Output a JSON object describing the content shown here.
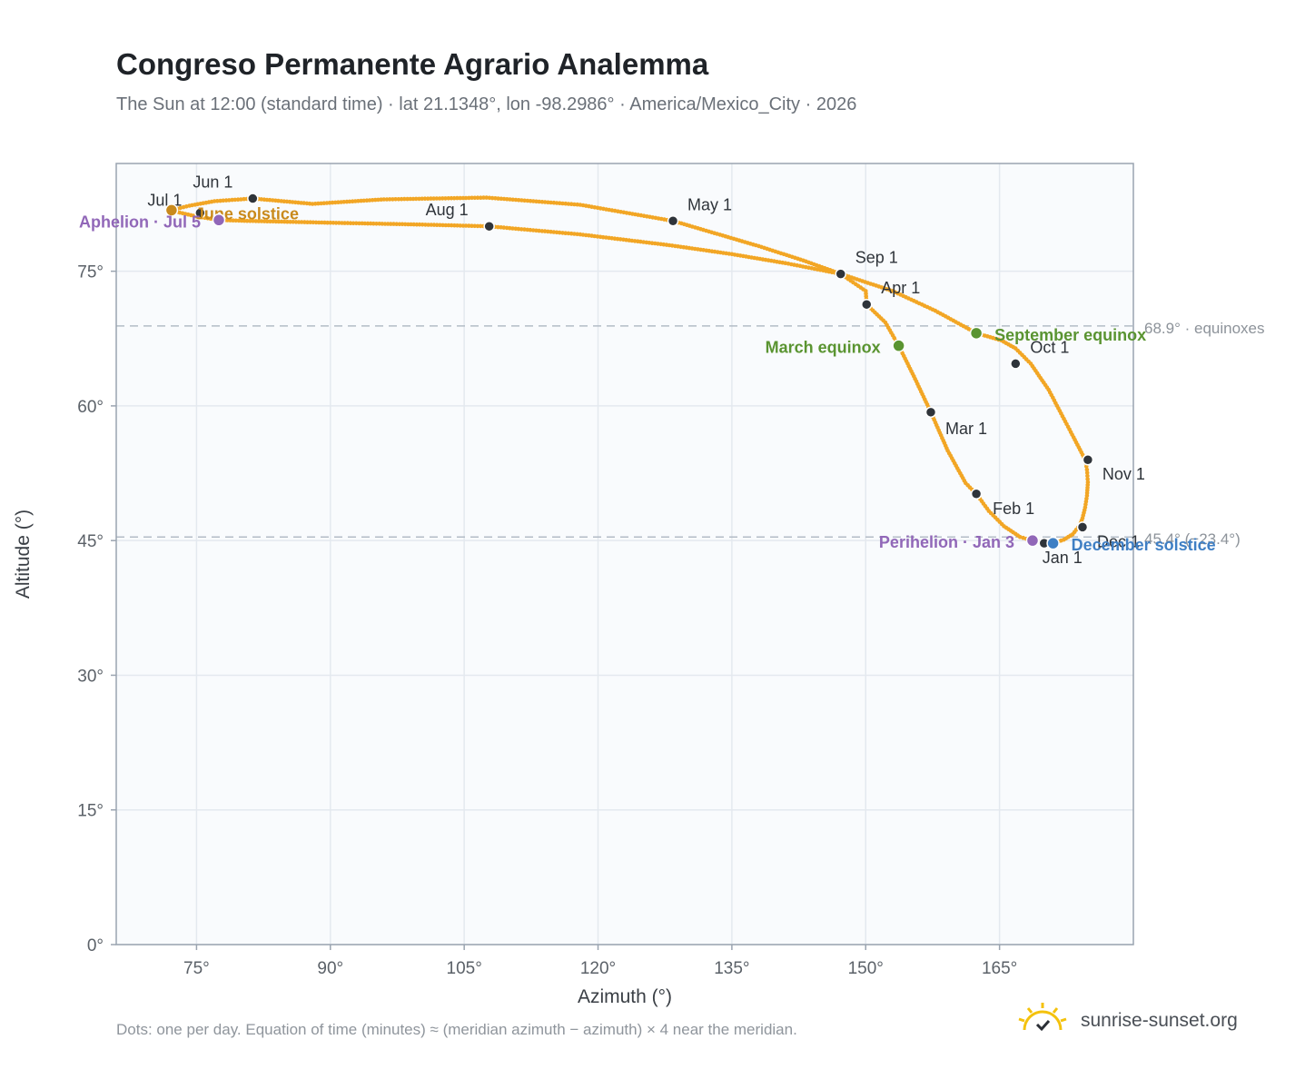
{
  "chart_data": {
    "type": "scatter",
    "title": "Congreso Permanente Agrario Analemma",
    "subtitle": "The Sun at 12:00 (standard time) · lat 21.1348°, lon -98.2986° · America/Mexico_City · 2026",
    "xlabel": "Azimuth (°)",
    "ylabel": "Altitude (°)",
    "xlim": [
      66,
      180
    ],
    "ylim": [
      0,
      87
    ],
    "xticks": [
      75,
      90,
      105,
      120,
      135,
      150,
      165
    ],
    "yticks": [
      0,
      15,
      30,
      45,
      60,
      75
    ],
    "xtick_labels": [
      "75°",
      "90°",
      "105°",
      "120°",
      "135°",
      "150°",
      "165°"
    ],
    "ytick_labels": [
      "0°",
      "15°",
      "30°",
      "45°",
      "60°",
      "75°"
    ],
    "grid": true,
    "series": [
      {
        "color": "#f2a625",
        "points": [
          [
            171.0,
            44.7
          ],
          [
            171.6,
            44.9
          ],
          [
            172.2,
            45.1
          ],
          [
            172.7,
            45.4
          ],
          [
            173.2,
            45.7
          ],
          [
            173.6,
            46.2
          ],
          [
            174.0,
            46.7
          ],
          [
            174.3,
            47.5
          ],
          [
            174.6,
            48.7
          ],
          [
            174.8,
            50.0
          ],
          [
            174.9,
            51.5
          ],
          [
            174.8,
            52.9
          ],
          [
            174.6,
            54.0
          ],
          [
            173.3,
            56.5
          ],
          [
            170.5,
            61.8
          ],
          [
            168.5,
            64.7
          ],
          [
            166.8,
            66.4
          ],
          [
            165.2,
            67.3
          ],
          [
            162.4,
            68.1
          ],
          [
            157.8,
            70.6
          ],
          [
            153.0,
            72.8
          ],
          [
            147.2,
            74.7
          ],
          [
            143.0,
            76.2
          ],
          [
            138.0,
            77.8
          ],
          [
            128.4,
            80.6
          ],
          [
            118.0,
            82.4
          ],
          [
            107.5,
            83.2
          ],
          [
            96.0,
            83.0
          ],
          [
            88.0,
            82.5
          ],
          [
            81.3,
            83.1
          ],
          [
            77.0,
            82.8
          ],
          [
            74.2,
            82.3
          ],
          [
            72.2,
            81.8
          ],
          [
            72.8,
            81.6
          ],
          [
            75.0,
            81.1
          ],
          [
            77.5,
            80.7
          ],
          [
            81.0,
            80.6
          ],
          [
            90.0,
            80.4
          ],
          [
            100.0,
            80.2
          ],
          [
            107.8,
            80.0
          ],
          [
            118.0,
            79.1
          ],
          [
            128.0,
            77.9
          ],
          [
            135.0,
            76.9
          ],
          [
            141.0,
            75.9
          ],
          [
            147.2,
            74.7
          ],
          [
            150.0,
            72.8
          ],
          [
            150.1,
            71.3
          ],
          [
            152.2,
            69.3
          ],
          [
            153.7,
            66.7
          ],
          [
            155.4,
            63.3
          ],
          [
            157.3,
            59.3
          ],
          [
            159.2,
            55.0
          ],
          [
            161.2,
            51.4
          ],
          [
            162.4,
            50.2
          ],
          [
            163.8,
            48.3
          ],
          [
            165.5,
            46.6
          ],
          [
            167.3,
            45.4
          ],
          [
            168.7,
            45.0
          ],
          [
            170.0,
            44.7
          ],
          [
            171.0,
            44.7
          ]
        ]
      }
    ],
    "month_markers": [
      {
        "label": "Jan 1",
        "azimuth": 170.0,
        "altitude": 44.7
      },
      {
        "label": "Feb 1",
        "azimuth": 162.4,
        "altitude": 50.2
      },
      {
        "label": "Mar 1",
        "azimuth": 157.3,
        "altitude": 59.3
      },
      {
        "label": "Apr 1",
        "azimuth": 150.1,
        "altitude": 71.3
      },
      {
        "label": "May 1",
        "azimuth": 128.4,
        "altitude": 80.6
      },
      {
        "label": "Jun 1",
        "azimuth": 81.3,
        "altitude": 83.1
      },
      {
        "label": "Jul 1",
        "azimuth": 75.4,
        "altitude": 81.5
      },
      {
        "label": "Aug 1",
        "azimuth": 107.8,
        "altitude": 80.0
      },
      {
        "label": "Sep 1",
        "azimuth": 147.2,
        "altitude": 74.7
      },
      {
        "label": "Oct 1",
        "azimuth": 166.8,
        "altitude": 64.7
      },
      {
        "label": "Nov 1",
        "azimuth": 174.9,
        "altitude": 54.0
      },
      {
        "label": "Dec 1",
        "azimuth": 174.3,
        "altitude": 46.5
      }
    ],
    "events": [
      {
        "label": "March equinox",
        "azimuth": 153.7,
        "altitude": 66.7,
        "color": "#5a9431"
      },
      {
        "label": "September equinox",
        "azimuth": 162.4,
        "altitude": 68.1,
        "color": "#5a9431"
      },
      {
        "label": "June solstice",
        "azimuth": 72.2,
        "altitude": 81.8,
        "color": "#c98a1c"
      },
      {
        "label": "December solstice",
        "azimuth": 171.0,
        "altitude": 44.7,
        "color": "#3f7fc4"
      },
      {
        "label": "Aphelion · Jul 5",
        "azimuth": 77.5,
        "altitude": 80.7,
        "color": "#9167b8"
      },
      {
        "label": "Perihelion · Jan 3",
        "azimuth": 168.7,
        "altitude": 45.0,
        "color": "#9167b8"
      }
    ],
    "reference_lines": [
      {
        "altitude": 68.9,
        "label": "68.9° · equinoxes"
      },
      {
        "altitude": 45.4,
        "label": "45.4° (−23.4°)"
      }
    ]
  },
  "footnote": "Dots: one per day. Equation of time (minutes) ≈ (meridian azimuth − azimuth) × 4 near the meridian.",
  "brand": {
    "name": "sunrise-sunset.org",
    "logo_icon": "sun-check-icon"
  }
}
